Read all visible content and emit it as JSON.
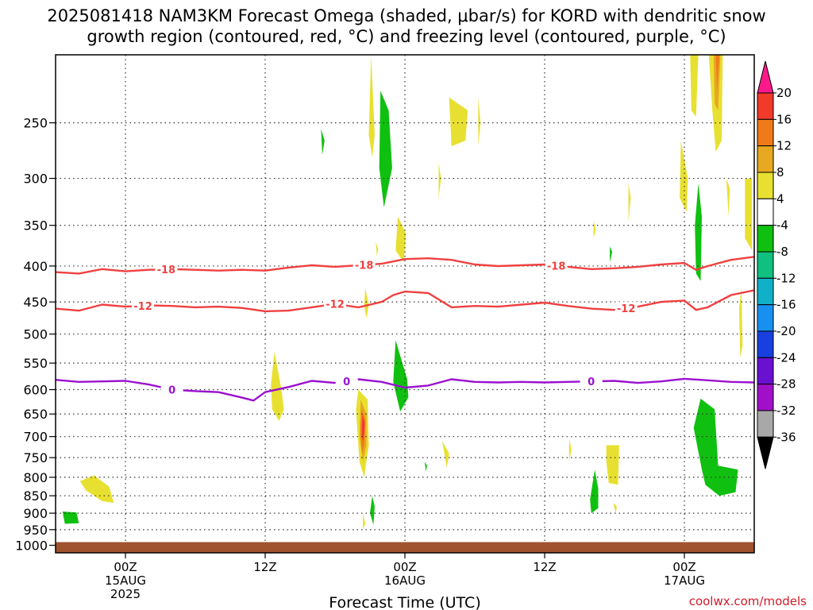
{
  "title": {
    "line1": "2025081418 NAM3KM Forecast Omega (shaded, μbar/s) for KORD with dendritic snow",
    "line2": "growth region (contoured, red, °C) and freezing level (contoured, purple, °C)"
  },
  "credit": "coolwx.com/models",
  "chart_data": {
    "type": "heatmap",
    "xlabel": "Forecast Time (UTC)",
    "ylabel": "",
    "x_units": "forecast hours from 2025-08-14 18Z",
    "xlim": [
      0,
      60
    ],
    "y_ticks": [
      250,
      300,
      350,
      400,
      450,
      500,
      550,
      600,
      650,
      700,
      750,
      800,
      850,
      900,
      950,
      1000
    ],
    "ylim": [
      1025,
      200
    ],
    "x_ticks": [
      {
        "hour": 6,
        "lines": [
          "00Z",
          "15AUG",
          "2025"
        ]
      },
      {
        "hour": 18,
        "lines": [
          "12Z"
        ]
      },
      {
        "hour": 30,
        "lines": [
          "00Z",
          "16AUG"
        ]
      },
      {
        "hour": 42,
        "lines": [
          "12Z"
        ]
      },
      {
        "hour": 54,
        "lines": [
          "00Z",
          "17AUG"
        ]
      }
    ],
    "grid": true,
    "colorbar": {
      "levels": [
        "20",
        "16",
        "12",
        "8",
        "4",
        "-4",
        "-8",
        "-12",
        "-16",
        "-20",
        "-24",
        "-28",
        "-32",
        "-36"
      ],
      "colors": [
        "#ff1a8c",
        "#f23a2a",
        "#f07a1a",
        "#e8a820",
        "#e8e030",
        "#ffffff",
        "#10c010",
        "#10c080",
        "#10b0c8",
        "#1890f0",
        "#1840e0",
        "#6a10d0",
        "#a010c8",
        "#a8a8a8",
        "#000000"
      ]
    },
    "surface": {
      "pressure": 1000,
      "color": "#a0522d"
    },
    "contours": [
      {
        "name": "-18",
        "color": "#f04040",
        "labels_at_hours": [
          9.5,
          26.5,
          43
        ],
        "points": [
          [
            0,
            408
          ],
          [
            2,
            410
          ],
          [
            4,
            404
          ],
          [
            6,
            407
          ],
          [
            8,
            405
          ],
          [
            10,
            404
          ],
          [
            12,
            405
          ],
          [
            14,
            406
          ],
          [
            16,
            405
          ],
          [
            18,
            406
          ],
          [
            20,
            402
          ],
          [
            22,
            399
          ],
          [
            24,
            401
          ],
          [
            26,
            399
          ],
          [
            28,
            397
          ],
          [
            30,
            391
          ],
          [
            32,
            390
          ],
          [
            34,
            392
          ],
          [
            36,
            398
          ],
          [
            38,
            400
          ],
          [
            40,
            399
          ],
          [
            42,
            398
          ],
          [
            44,
            401
          ],
          [
            46,
            404
          ],
          [
            48,
            403
          ],
          [
            50,
            401
          ],
          [
            52,
            398
          ],
          [
            54,
            396
          ],
          [
            55,
            405
          ],
          [
            56,
            400
          ],
          [
            58,
            392
          ],
          [
            60,
            388
          ]
        ]
      },
      {
        "name": "-12",
        "color": "#f04040",
        "labels_at_hours": [
          7.5,
          24,
          49
        ],
        "points": [
          [
            0,
            460
          ],
          [
            2,
            463
          ],
          [
            4,
            454
          ],
          [
            6,
            457
          ],
          [
            8,
            455
          ],
          [
            10,
            456
          ],
          [
            12,
            458
          ],
          [
            14,
            457
          ],
          [
            16,
            459
          ],
          [
            18,
            464
          ],
          [
            20,
            463
          ],
          [
            22,
            458
          ],
          [
            24,
            453
          ],
          [
            26,
            458
          ],
          [
            28,
            450
          ],
          [
            29,
            440
          ],
          [
            30,
            435
          ],
          [
            32,
            437
          ],
          [
            34,
            458
          ],
          [
            36,
            456
          ],
          [
            38,
            457
          ],
          [
            40,
            454
          ],
          [
            42,
            451
          ],
          [
            44,
            456
          ],
          [
            46,
            460
          ],
          [
            48,
            462
          ],
          [
            50,
            457
          ],
          [
            52,
            450
          ],
          [
            54,
            448
          ],
          [
            55,
            462
          ],
          [
            56,
            458
          ],
          [
            58,
            440
          ],
          [
            60,
            433
          ]
        ]
      },
      {
        "name": "0",
        "color": "#9b10d0",
        "labels_at_hours": [
          10,
          25,
          46
        ],
        "points": [
          [
            0,
            581
          ],
          [
            2,
            585
          ],
          [
            4,
            584
          ],
          [
            6,
            583
          ],
          [
            8,
            590
          ],
          [
            10,
            600
          ],
          [
            12,
            603
          ],
          [
            14,
            605
          ],
          [
            16,
            616
          ],
          [
            17,
            622
          ],
          [
            18,
            605
          ],
          [
            20,
            595
          ],
          [
            22,
            583
          ],
          [
            24,
            587
          ],
          [
            26,
            580
          ],
          [
            28,
            585
          ],
          [
            30,
            596
          ],
          [
            32,
            592
          ],
          [
            34,
            580
          ],
          [
            36,
            585
          ],
          [
            38,
            586
          ],
          [
            40,
            585
          ],
          [
            42,
            586
          ],
          [
            44,
            585
          ],
          [
            46,
            584
          ],
          [
            48,
            583
          ],
          [
            50,
            587
          ],
          [
            52,
            584
          ],
          [
            54,
            579
          ],
          [
            56,
            582
          ],
          [
            58,
            585
          ],
          [
            60,
            586
          ]
        ]
      }
    ],
    "omega_regions": [
      {
        "level": 4,
        "points": [
          [
            2.1,
            810
          ],
          [
            3.3,
            795
          ],
          [
            4.6,
            825
          ],
          [
            5.0,
            870
          ],
          [
            4.0,
            865
          ],
          [
            2.6,
            835
          ]
        ]
      },
      {
        "level": -4,
        "points": [
          [
            0.6,
            895
          ],
          [
            1.8,
            898
          ],
          [
            2.0,
            930
          ],
          [
            0.8,
            932
          ]
        ]
      },
      {
        "level": 4,
        "points": [
          [
            18.8,
            530
          ],
          [
            19.4,
            600
          ],
          [
            19.6,
            640
          ],
          [
            19.2,
            665
          ],
          [
            18.6,
            640
          ],
          [
            18.5,
            590
          ]
        ]
      },
      {
        "level": 4,
        "points": [
          [
            27.1,
            200
          ],
          [
            27.4,
            260
          ],
          [
            27.2,
            280
          ],
          [
            26.9,
            260
          ]
        ]
      },
      {
        "level": -4,
        "points": [
          [
            27.9,
            225
          ],
          [
            28.6,
            240
          ],
          [
            28.9,
            290
          ],
          [
            28.2,
            330
          ],
          [
            27.8,
            290
          ]
        ]
      },
      {
        "level": -4,
        "points": [
          [
            22.8,
            255
          ],
          [
            23.1,
            265
          ],
          [
            22.9,
            278
          ]
        ]
      },
      {
        "level": 4,
        "points": [
          [
            29.4,
            340
          ],
          [
            30.1,
            360
          ],
          [
            29.9,
            395
          ],
          [
            29.2,
            380
          ]
        ]
      },
      {
        "level": 4,
        "points": [
          [
            26.6,
            430
          ],
          [
            26.9,
            455
          ],
          [
            26.7,
            475
          ],
          [
            26.5,
            455
          ]
        ]
      },
      {
        "level": 4,
        "points": [
          [
            27.5,
            370
          ],
          [
            27.7,
            378
          ],
          [
            27.6,
            388
          ]
        ]
      },
      {
        "level": -4,
        "points": [
          [
            29.2,
            510
          ],
          [
            30.2,
            580
          ],
          [
            30.3,
            615
          ],
          [
            29.6,
            645
          ],
          [
            29.0,
            585
          ]
        ]
      },
      {
        "level": 4,
        "points": [
          [
            26.0,
            600
          ],
          [
            26.8,
            620
          ],
          [
            26.9,
            720
          ],
          [
            26.5,
            800
          ],
          [
            26.1,
            760
          ],
          [
            25.8,
            640
          ]
        ]
      },
      {
        "level": 8,
        "points": [
          [
            26.2,
            620
          ],
          [
            26.7,
            650
          ],
          [
            26.7,
            720
          ],
          [
            26.4,
            760
          ],
          [
            26.1,
            700
          ]
        ]
      },
      {
        "level": 12,
        "points": [
          [
            26.3,
            640
          ],
          [
            26.6,
            665
          ],
          [
            26.5,
            720
          ],
          [
            26.3,
            740
          ],
          [
            26.2,
            680
          ]
        ]
      },
      {
        "level": 16,
        "points": [
          [
            26.35,
            650
          ],
          [
            26.55,
            670
          ],
          [
            26.45,
            710
          ],
          [
            26.3,
            700
          ]
        ]
      },
      {
        "level": 20,
        "points": [
          [
            26.38,
            665
          ],
          [
            26.5,
            680
          ],
          [
            26.4,
            700
          ]
        ]
      },
      {
        "level": -4,
        "points": [
          [
            27.2,
            850
          ],
          [
            27.4,
            880
          ],
          [
            27.3,
            935
          ],
          [
            27.0,
            900
          ]
        ]
      },
      {
        "level": 4,
        "points": [
          [
            26.4,
            900
          ],
          [
            26.6,
            930
          ],
          [
            26.4,
            950
          ]
        ]
      },
      {
        "level": 4,
        "points": [
          [
            33.8,
            230
          ],
          [
            35.4,
            240
          ],
          [
            35.2,
            265
          ],
          [
            34.0,
            270
          ]
        ]
      },
      {
        "level": 4,
        "points": [
          [
            36.3,
            230
          ],
          [
            36.5,
            250
          ],
          [
            36.3,
            270
          ]
        ]
      },
      {
        "level": 4,
        "points": [
          [
            32.9,
            285
          ],
          [
            33.1,
            300
          ],
          [
            32.9,
            320
          ]
        ]
      },
      {
        "level": -4,
        "points": [
          [
            31.7,
            760
          ],
          [
            31.9,
            770
          ],
          [
            31.8,
            785
          ]
        ]
      },
      {
        "level": 4,
        "points": [
          [
            33.2,
            710
          ],
          [
            33.8,
            740
          ],
          [
            33.6,
            775
          ]
        ]
      },
      {
        "level": 4,
        "points": [
          [
            44.1,
            705
          ],
          [
            44.3,
            730
          ],
          [
            44.1,
            760
          ]
        ]
      },
      {
        "level": 4,
        "points": [
          [
            47.3,
            720
          ],
          [
            48.4,
            720
          ],
          [
            48.3,
            820
          ],
          [
            47.5,
            815
          ],
          [
            47.3,
            760
          ]
        ]
      },
      {
        "level": -4,
        "points": [
          [
            46.3,
            780
          ],
          [
            46.6,
            830
          ],
          [
            46.6,
            885
          ],
          [
            46.0,
            900
          ],
          [
            45.9,
            860
          ]
        ]
      },
      {
        "level": 4,
        "points": [
          [
            47.9,
            870
          ],
          [
            48.2,
            880
          ],
          [
            48.1,
            900
          ]
        ]
      },
      {
        "level": -4,
        "points": [
          [
            47.6,
            375
          ],
          [
            47.8,
            382
          ],
          [
            47.6,
            395
          ]
        ]
      },
      {
        "level": 4,
        "points": [
          [
            46.2,
            345
          ],
          [
            46.4,
            355
          ],
          [
            46.2,
            365
          ]
        ]
      },
      {
        "level": 4,
        "points": [
          [
            49.2,
            305
          ],
          [
            49.4,
            320
          ],
          [
            49.2,
            345
          ]
        ]
      },
      {
        "level": 4,
        "points": [
          [
            53.7,
            265
          ],
          [
            54.3,
            300
          ],
          [
            54.2,
            335
          ],
          [
            53.6,
            320
          ]
        ]
      },
      {
        "level": -4,
        "points": [
          [
            55.2,
            305
          ],
          [
            55.5,
            340
          ],
          [
            55.4,
            420
          ],
          [
            55.0,
            410
          ],
          [
            54.9,
            350
          ]
        ]
      },
      {
        "level": 4,
        "points": [
          [
            54.5,
            200
          ],
          [
            55.2,
            200
          ],
          [
            55.0,
            245
          ],
          [
            54.6,
            240
          ]
        ]
      },
      {
        "level": 4,
        "points": [
          [
            56.1,
            200
          ],
          [
            57.3,
            200
          ],
          [
            57.2,
            265
          ],
          [
            56.7,
            275
          ],
          [
            56.4,
            240
          ]
        ]
      },
      {
        "level": 8,
        "points": [
          [
            56.5,
            200
          ],
          [
            57.1,
            200
          ],
          [
            56.9,
            240
          ],
          [
            56.6,
            235
          ]
        ]
      },
      {
        "level": 12,
        "points": [
          [
            56.7,
            200
          ],
          [
            57.0,
            200
          ],
          [
            56.8,
            225
          ]
        ]
      },
      {
        "level": 4,
        "points": [
          [
            57.6,
            300
          ],
          [
            57.9,
            310
          ],
          [
            57.8,
            340
          ]
        ]
      },
      {
        "level": 4,
        "points": [
          [
            59.2,
            300
          ],
          [
            59.8,
            300
          ],
          [
            59.8,
            380
          ],
          [
            59.2,
            365
          ]
        ]
      },
      {
        "level": 4,
        "points": [
          [
            58.7,
            460
          ],
          [
            58.9,
            430
          ],
          [
            59.0,
            520
          ],
          [
            58.8,
            540
          ]
        ]
      },
      {
        "level": -4,
        "points": [
          [
            54.8,
            680
          ],
          [
            55.4,
            618
          ],
          [
            56.6,
            640
          ],
          [
            56.9,
            770
          ],
          [
            58.6,
            780
          ],
          [
            58.4,
            840
          ],
          [
            57.0,
            850
          ],
          [
            55.8,
            820
          ],
          [
            55.5,
            780
          ]
        ]
      }
    ]
  }
}
